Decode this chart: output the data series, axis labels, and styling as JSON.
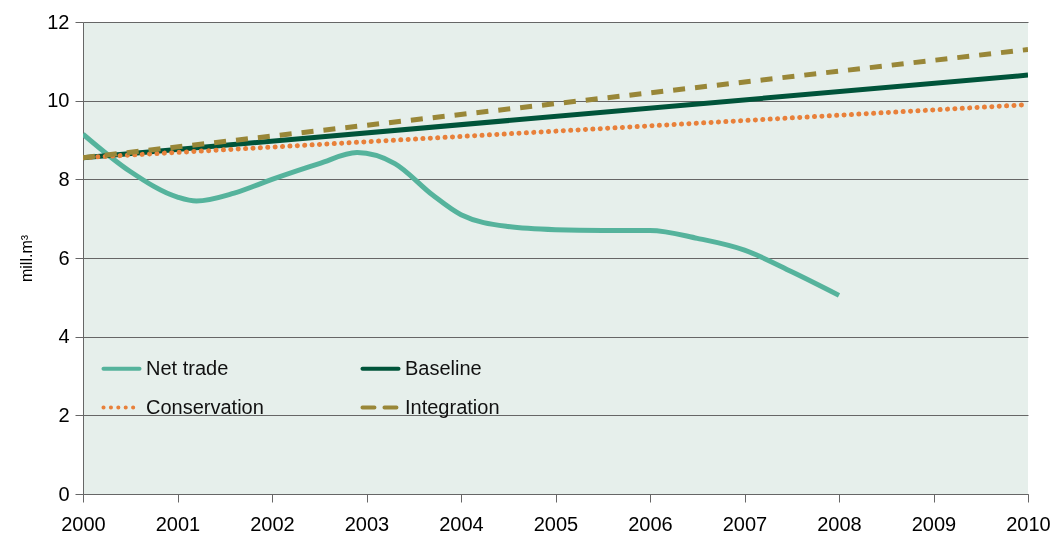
{
  "chart_data": {
    "type": "line",
    "ylabel": "mill.m³",
    "xlim": [
      2000,
      2010
    ],
    "xticks": [
      2000,
      2001,
      2002,
      2003,
      2004,
      2005,
      2006,
      2007,
      2008,
      2009,
      2010
    ],
    "ylim": [
      0,
      12
    ],
    "yticks": [
      0,
      2,
      4,
      6,
      8,
      10,
      12
    ],
    "grid": "y",
    "legend": "bottom left",
    "series": [
      {
        "name": "Net trade",
        "color": "#55b39c",
        "line_style": "solid",
        "x": [
          2000,
          2000.5,
          2001,
          2001.2,
          2001.6,
          2002,
          2002.5,
          2002.9,
          2003.3,
          2003.7,
          2004,
          2004.5,
          2005,
          2005.5,
          2006,
          2006.5,
          2007,
          2007.5,
          2008
        ],
        "values": [
          9.15,
          8.2,
          7.55,
          7.45,
          7.65,
          8.0,
          8.4,
          8.68,
          8.4,
          7.6,
          7.1,
          6.8,
          6.72,
          6.7,
          6.7,
          6.5,
          6.2,
          5.65,
          5.05
        ]
      },
      {
        "name": "Baseline",
        "color": "#00543a",
        "line_style": "solid",
        "x": [
          2000,
          2010
        ],
        "values": [
          8.55,
          10.65
        ]
      },
      {
        "name": "Conservation",
        "color": "#e8803a",
        "line_style": "dotted",
        "x": [
          2000,
          2010
        ],
        "values": [
          8.55,
          9.9
        ]
      },
      {
        "name": "Integration",
        "color": "#998738",
        "line_style": "dashed",
        "x": [
          2000,
          2010
        ],
        "values": [
          8.55,
          11.3
        ]
      }
    ]
  }
}
